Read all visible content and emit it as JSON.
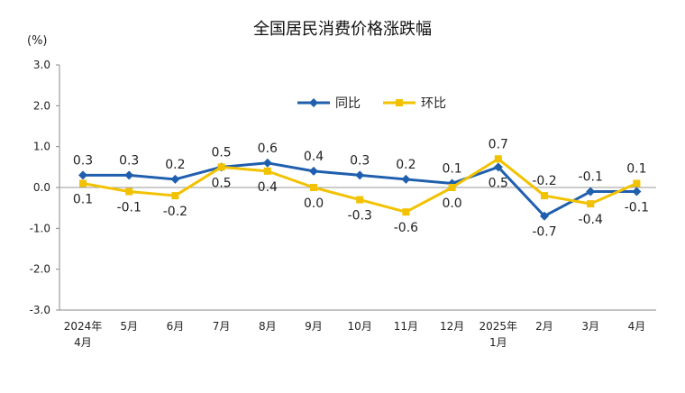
{
  "chart_data": {
    "type": "line",
    "title": "全国居民消费价格涨跌幅",
    "unit": "(%)",
    "categories": [
      [
        "2024年",
        "4月"
      ],
      [
        "5月"
      ],
      [
        "6月"
      ],
      [
        "7月"
      ],
      [
        "8月"
      ],
      [
        "9月"
      ],
      [
        "10月"
      ],
      [
        "11月"
      ],
      [
        "12月"
      ],
      [
        "2025年",
        "1月"
      ],
      [
        "2月"
      ],
      [
        "3月"
      ],
      [
        "4月"
      ]
    ],
    "ylim": [
      -3.0,
      3.0
    ],
    "yticks": [
      "3.0",
      "2.0",
      "1.0",
      "0.0",
      "-1.0",
      "-2.0",
      "-3.0"
    ],
    "legend_position": "top-right",
    "series": [
      {
        "name": "同比",
        "color": "#1f5fae",
        "marker": "diamond",
        "values": [
          0.3,
          0.3,
          0.2,
          0.5,
          0.6,
          0.4,
          0.3,
          0.2,
          0.1,
          0.5,
          -0.7,
          -0.1,
          -0.1
        ],
        "labels": [
          "0.3",
          "0.3",
          "0.2",
          "0.5",
          "0.6",
          "0.4",
          "0.3",
          "0.2",
          "0.1",
          "0.5",
          "-0.7",
          "-0.1",
          "-0.1"
        ]
      },
      {
        "name": "环比",
        "color": "#f2c200",
        "marker": "square",
        "values": [
          0.1,
          -0.1,
          -0.2,
          0.5,
          0.4,
          0.0,
          -0.3,
          -0.6,
          0.0,
          0.7,
          -0.2,
          -0.4,
          0.1
        ],
        "labels": [
          "0.1",
          "-0.1",
          "-0.2",
          "0.5",
          "0.4",
          "0.0",
          "-0.3",
          "-0.6",
          "0.0",
          "0.7",
          "-0.2",
          "-0.4",
          "0.1"
        ]
      }
    ]
  }
}
